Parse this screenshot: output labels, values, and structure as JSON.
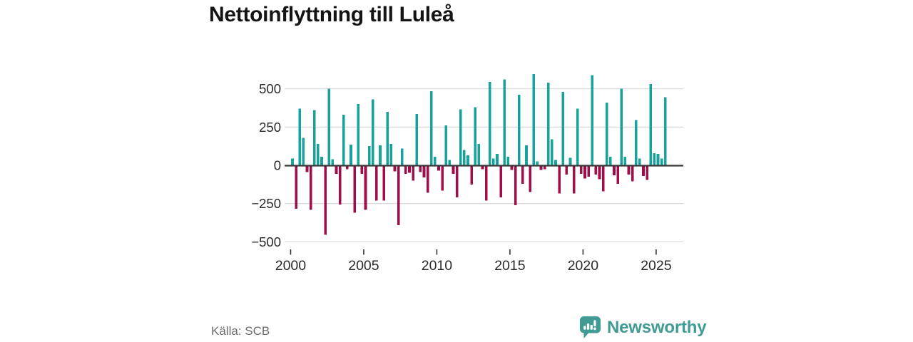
{
  "title": "Nettoinflyttning till Luleå",
  "source": "Källa: SCB",
  "brand": {
    "name": "Newsworthy",
    "icon": "newsworthy-speech-bubble-chart-icon"
  },
  "colors": {
    "bar_positive": "#15a39b",
    "bar_negative": "#a10d49",
    "brand_teal": "#3f9b94",
    "gridline": "#dcdcdc",
    "zero_line": "#383838",
    "axis_text": "#2b2b2b",
    "tick_mark": "#333333"
  },
  "chart_data": {
    "type": "bar",
    "title": "Nettoinflyttning till Luleå",
    "frequency": "quarterly",
    "start": {
      "year": 2000,
      "quarter": 1
    },
    "end": {
      "year": 2025,
      "quarter": 3
    },
    "values": [
      45,
      -285,
      370,
      180,
      -45,
      -290,
      360,
      140,
      55,
      -455,
      500,
      40,
      -55,
      -255,
      330,
      -25,
      135,
      -310,
      400,
      -55,
      -290,
      125,
      430,
      -230,
      130,
      -230,
      350,
      140,
      -40,
      -390,
      110,
      -55,
      -50,
      -100,
      335,
      -45,
      -80,
      -180,
      485,
      55,
      -35,
      -165,
      260,
      35,
      -55,
      -210,
      365,
      100,
      65,
      -125,
      380,
      140,
      -25,
      -230,
      545,
      45,
      75,
      -210,
      560,
      55,
      -30,
      -260,
      460,
      -120,
      130,
      -175,
      595,
      25,
      -30,
      -25,
      540,
      170,
      35,
      -185,
      480,
      -60,
      50,
      -185,
      370,
      -55,
      -85,
      -75,
      590,
      -60,
      -90,
      -170,
      410,
      55,
      -65,
      -120,
      500,
      55,
      -60,
      -105,
      295,
      45,
      -70,
      -95,
      530,
      80,
      75,
      45,
      445
    ],
    "yticks": [
      500,
      250,
      0,
      -250,
      -500
    ],
    "ytick_labels": [
      "500",
      "250",
      "0",
      "−250",
      "−500"
    ],
    "xticks": [
      2000,
      2005,
      2010,
      2015,
      2020,
      2025
    ],
    "xtick_labels": [
      "2000",
      "2005",
      "2010",
      "2015",
      "2020",
      "2025"
    ],
    "ylim": [
      -560,
      625
    ],
    "grid": true,
    "legend": false
  }
}
